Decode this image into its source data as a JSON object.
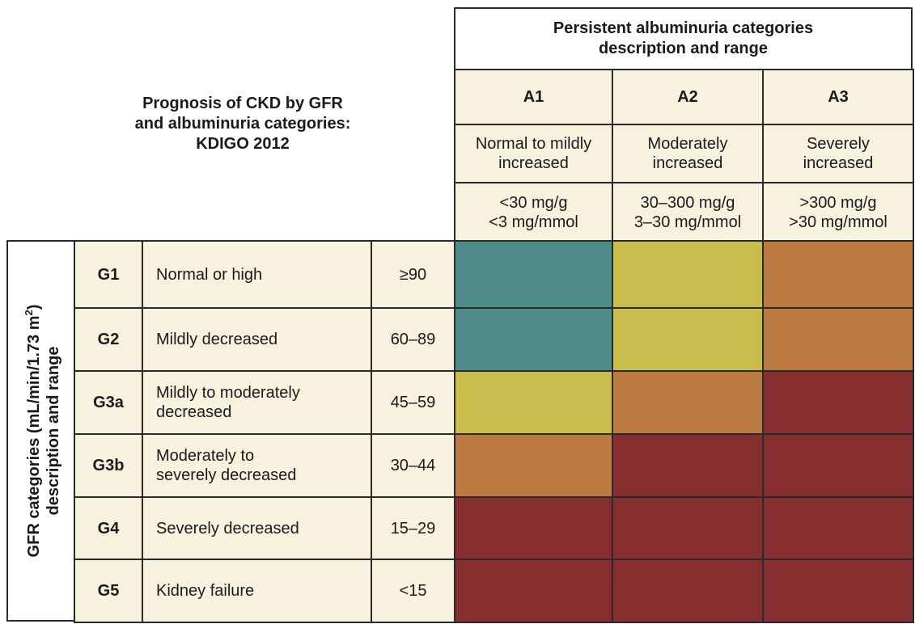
{
  "chart_data": {
    "type": "heatmap",
    "title_lines": [
      "Prognosis of CKD by GFR",
      "and albuminuria categories:",
      "KDIGO 2012"
    ],
    "col_header_lines": [
      "Persistent albuminuria categories",
      "description and range"
    ],
    "row_header_label": "GFR categories (mL/min/1.73 m",
    "row_header_sup": "2",
    "row_header_label_end": ")",
    "row_header_label2": "description and range",
    "columns": [
      {
        "code": "A1",
        "desc": [
          "Normal to mildly",
          "increased"
        ],
        "range": [
          "<30 mg/g",
          "<3 mg/mmol"
        ]
      },
      {
        "code": "A2",
        "desc": [
          "Moderately",
          "increased"
        ],
        "range": [
          "30–300 mg/g",
          "3–30 mg/mmol"
        ]
      },
      {
        "code": "A3",
        "desc": [
          "Severely",
          "increased"
        ],
        "range": [
          ">300 mg/g",
          ">30 mg/mmol"
        ]
      }
    ],
    "rows": [
      {
        "code": "G1",
        "desc": [
          "Normal or high"
        ],
        "range": "≥90",
        "risk": [
          "green",
          "yellow",
          "orange"
        ]
      },
      {
        "code": "G2",
        "desc": [
          "Mildly decreased"
        ],
        "range": "60–89",
        "risk": [
          "green",
          "yellow",
          "orange"
        ]
      },
      {
        "code": "G3a",
        "desc": [
          "Mildly to moderately",
          "decreased"
        ],
        "range": "45–59",
        "risk": [
          "yellow",
          "orange",
          "red"
        ]
      },
      {
        "code": "G3b",
        "desc": [
          "Moderately to",
          "severely decreased"
        ],
        "range": "30–44",
        "risk": [
          "orange",
          "red",
          "red"
        ]
      },
      {
        "code": "G4",
        "desc": [
          "Severely decreased"
        ],
        "range": "15–29",
        "risk": [
          "red",
          "red",
          "red"
        ]
      },
      {
        "code": "G5",
        "desc": [
          "Kidney failure"
        ],
        "range": "<15",
        "risk": [
          "red",
          "red",
          "red"
        ]
      }
    ],
    "risk_colors": {
      "green": "#4e8c8a",
      "yellow": "#c9bd4d",
      "orange": "#ba7a42",
      "red": "#862e30"
    }
  }
}
